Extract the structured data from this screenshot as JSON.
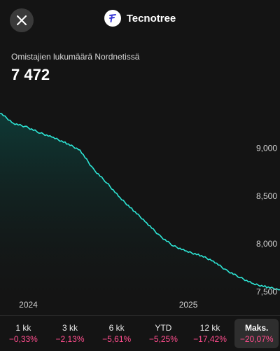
{
  "header": {
    "company_name": "Tecnotree",
    "close_icon": "close-icon",
    "logo_icon": "tecnotree-logo-icon"
  },
  "metric": {
    "label": "Omistajien lukumäärä Nordnetissä",
    "value": "7 472"
  },
  "colors": {
    "line": "#2ee6d6",
    "negative": "#ff4d8d",
    "background": "#141414"
  },
  "chart_data": {
    "type": "area",
    "x": [
      "2023-10",
      "2023-11",
      "2023-12",
      "2024-01",
      "2024-02",
      "2024-03",
      "2024-04",
      "2024-05",
      "2024-06",
      "2024-07",
      "2024-08",
      "2024-09",
      "2024-10",
      "2024-11",
      "2024-12",
      "2025-01",
      "2025-02",
      "2025-03",
      "2025-04",
      "2025-05",
      "2025-06",
      "2025-07"
    ],
    "series": [
      {
        "values": [
          9370,
          9260,
          9220,
          9160,
          9110,
          9050,
          8980,
          8780,
          8640,
          8480,
          8350,
          8220,
          8080,
          7980,
          7920,
          7880,
          7820,
          7720,
          7650,
          7580,
          7550,
          7520
        ]
      }
    ],
    "x_tick_labels": [
      "2024",
      "2025"
    ],
    "y_tick_labels": [
      "9,000",
      "8,500",
      "8,000",
      "7,500"
    ],
    "y_ticks": [
      9000,
      8500,
      8000,
      7500
    ],
    "ylim": [
      7400,
      9450
    ],
    "grid": false
  },
  "periods": [
    {
      "label": "1 kk",
      "change": "−0,33%",
      "active": false
    },
    {
      "label": "3 kk",
      "change": "−2,13%",
      "active": false
    },
    {
      "label": "6 kk",
      "change": "−5,61%",
      "active": false
    },
    {
      "label": "YTD",
      "change": "−5,25%",
      "active": false
    },
    {
      "label": "12 kk",
      "change": "−17,42%",
      "active": false
    },
    {
      "label": "Maks.",
      "change": "−20,07%",
      "active": true
    }
  ]
}
